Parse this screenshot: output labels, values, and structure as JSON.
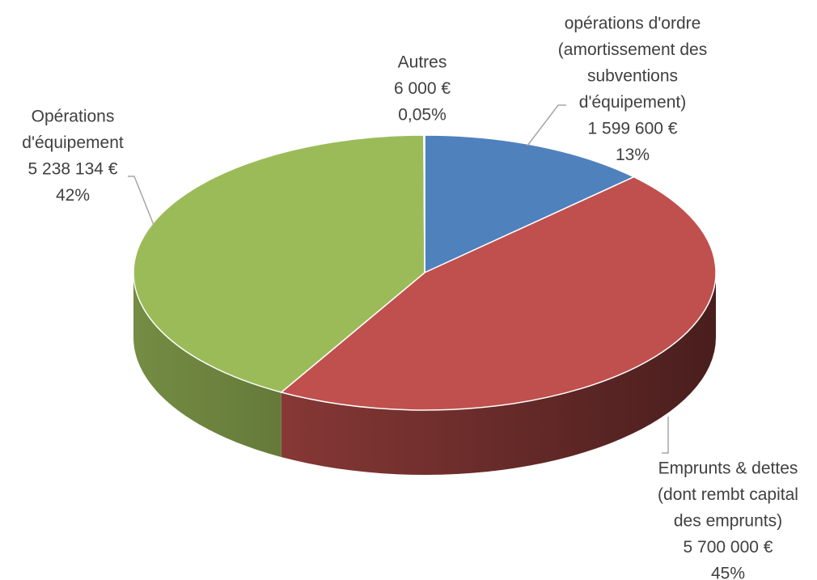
{
  "chart_data": {
    "type": "pie3d",
    "categories": [
      [
        "opérations d'ordre",
        "(amortissement des",
        "subventions",
        "d'équipement)"
      ],
      [
        "Emprunts & dettes",
        "(dont rembt capital",
        "des emprunts)"
      ],
      [
        "Opérations",
        "d'équipement"
      ],
      [
        "Autres"
      ]
    ],
    "values": [
      1599600,
      5700000,
      5238134,
      6000
    ],
    "value_labels": [
      "1 599 600 €",
      "5 700 000 €",
      "5 238 134 €",
      "6 000 €"
    ],
    "percent_labels": [
      "13%",
      "45%",
      "42%",
      "0,05%"
    ],
    "colors": [
      "#4f81bd",
      "#c0504d",
      "#9bbb59",
      "#8064a2"
    ]
  }
}
